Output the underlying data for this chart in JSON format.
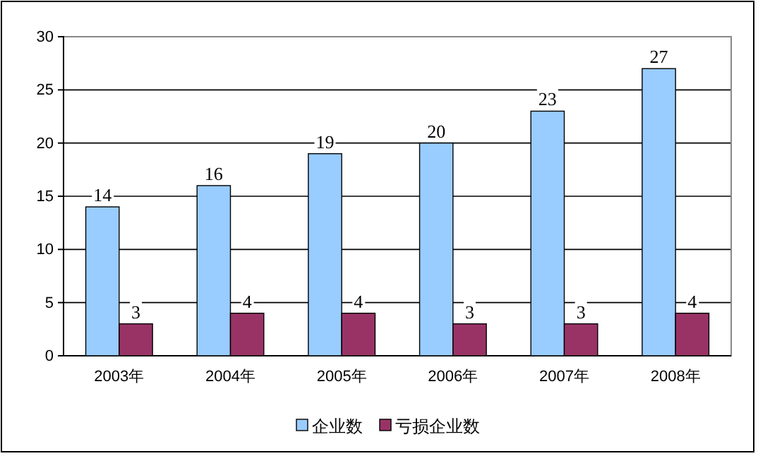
{
  "chart_data": {
    "type": "bar",
    "categories": [
      "2003年",
      "2004年",
      "2005年",
      "2006年",
      "2007年",
      "2008年"
    ],
    "series": [
      {
        "name": "企业数",
        "color": "#99ccff",
        "values": [
          14,
          16,
          19,
          20,
          23,
          27
        ]
      },
      {
        "name": "亏损企业数",
        "color": "#993366",
        "values": [
          3,
          4,
          4,
          3,
          3,
          4
        ]
      }
    ],
    "ylim": [
      0,
      30
    ],
    "yticks": [
      0,
      5,
      10,
      15,
      20,
      25,
      30
    ],
    "grid": "y",
    "legend": "bottom",
    "data_labels": true
  }
}
